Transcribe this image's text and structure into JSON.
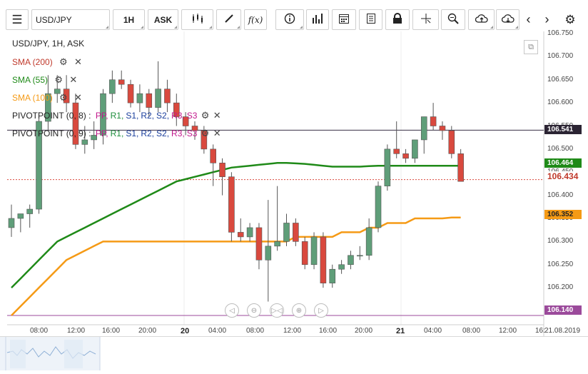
{
  "toolbar": {
    "symbol": "USD/JPY",
    "timeframe": "1H",
    "price_side": "ASK",
    "fx_label": "f(x)"
  },
  "legend": {
    "title": "USD/JPY, 1H, ASK",
    "sma200": "SMA (200)",
    "sma55": "SMA (55)",
    "sma100": "SMA (100)",
    "pivot1_label": "PIVOTPOINT (0, 8)",
    "pivot2_label": "PIVOTPOINT (0, 9)",
    "pivot_items": [
      "PP,",
      "R1,",
      "S1,",
      "R2,",
      "S2,",
      "R3,",
      "S3"
    ],
    "pivot_colors": [
      "#c2188c",
      "#1f8e3d",
      "#1a3e9c",
      "#1a3e9c",
      "#1a3e9c",
      "#c2188c",
      "#c2188c"
    ]
  },
  "colors": {
    "up": "#5f9e79",
    "down": "#d9493e",
    "sma55": "#1f8a18",
    "sma100": "#f59a15",
    "sma200": "#c0392b",
    "pivot_dark": "#3a2f45",
    "pivot_purple": "#9b4a9b"
  },
  "price_axis": {
    "ticks": [
      "106.750",
      "106.700",
      "106.650",
      "106.600",
      "106.550",
      "106.500",
      "106.450",
      "106.400",
      "106.350",
      "106.300",
      "106.250",
      "106.200",
      "106.150"
    ]
  },
  "price_tags": {
    "pivot_top": "106.541",
    "sma55": "106.464",
    "current": "106.434",
    "sma100": "106.352",
    "pivot_bottom": "106.140"
  },
  "time_axis": {
    "labels": [
      "08:00",
      "12:00",
      "16:00",
      "20:00",
      "20",
      "04:00",
      "08:00",
      "12:00",
      "16:00",
      "20:00",
      "21",
      "04:00",
      "08:00",
      "12:00",
      "16:"
    ],
    "date_label": "21.08.2019"
  },
  "chart_data": {
    "type": "candlestick",
    "title": "USD/JPY, 1H, ASK",
    "ylim": [
      106.14,
      106.75
    ],
    "candles": [
      {
        "o": 106.33,
        "h": 106.38,
        "l": 106.31,
        "c": 106.35
      },
      {
        "o": 106.35,
        "h": 106.36,
        "l": 106.32,
        "c": 106.36
      },
      {
        "o": 106.36,
        "h": 106.38,
        "l": 106.33,
        "c": 106.37
      },
      {
        "o": 106.37,
        "h": 106.58,
        "l": 106.36,
        "c": 106.56
      },
      {
        "o": 106.56,
        "h": 106.66,
        "l": 106.54,
        "c": 106.62
      },
      {
        "o": 106.62,
        "h": 106.66,
        "l": 106.6,
        "c": 106.63
      },
      {
        "o": 106.63,
        "h": 106.66,
        "l": 106.58,
        "c": 106.6
      },
      {
        "o": 106.6,
        "h": 106.62,
        "l": 106.5,
        "c": 106.51
      },
      {
        "o": 106.51,
        "h": 106.55,
        "l": 106.49,
        "c": 106.52
      },
      {
        "o": 106.52,
        "h": 106.56,
        "l": 106.5,
        "c": 106.53
      },
      {
        "o": 106.53,
        "h": 106.63,
        "l": 106.51,
        "c": 106.62
      },
      {
        "o": 106.62,
        "h": 106.67,
        "l": 106.6,
        "c": 106.65
      },
      {
        "o": 106.65,
        "h": 106.67,
        "l": 106.63,
        "c": 106.64
      },
      {
        "o": 106.64,
        "h": 106.65,
        "l": 106.59,
        "c": 106.6
      },
      {
        "o": 106.6,
        "h": 106.64,
        "l": 106.58,
        "c": 106.62
      },
      {
        "o": 106.62,
        "h": 106.63,
        "l": 106.57,
        "c": 106.59
      },
      {
        "o": 106.59,
        "h": 106.69,
        "l": 106.58,
        "c": 106.63
      },
      {
        "o": 106.63,
        "h": 106.65,
        "l": 106.58,
        "c": 106.6
      },
      {
        "o": 106.6,
        "h": 106.62,
        "l": 106.55,
        "c": 106.57
      },
      {
        "o": 106.57,
        "h": 106.58,
        "l": 106.53,
        "c": 106.55
      },
      {
        "o": 106.55,
        "h": 106.56,
        "l": 106.52,
        "c": 106.54
      },
      {
        "o": 106.54,
        "h": 106.55,
        "l": 106.49,
        "c": 106.5
      },
      {
        "o": 106.5,
        "h": 106.51,
        "l": 106.42,
        "c": 106.47
      },
      {
        "o": 106.47,
        "h": 106.48,
        "l": 106.4,
        "c": 106.44
      },
      {
        "o": 106.44,
        "h": 106.45,
        "l": 106.3,
        "c": 106.32
      },
      {
        "o": 106.32,
        "h": 106.35,
        "l": 106.3,
        "c": 106.31
      },
      {
        "o": 106.31,
        "h": 106.34,
        "l": 106.3,
        "c": 106.33
      },
      {
        "o": 106.33,
        "h": 106.34,
        "l": 106.24,
        "c": 106.26
      },
      {
        "o": 106.26,
        "h": 106.39,
        "l": 106.17,
        "c": 106.29
      },
      {
        "o": 106.29,
        "h": 106.42,
        "l": 106.28,
        "c": 106.3
      },
      {
        "o": 106.3,
        "h": 106.36,
        "l": 106.29,
        "c": 106.34
      },
      {
        "o": 106.34,
        "h": 106.35,
        "l": 106.29,
        "c": 106.3
      },
      {
        "o": 106.3,
        "h": 106.31,
        "l": 106.24,
        "c": 106.25
      },
      {
        "o": 106.25,
        "h": 106.32,
        "l": 106.24,
        "c": 106.31
      },
      {
        "o": 106.31,
        "h": 106.32,
        "l": 106.2,
        "c": 106.21
      },
      {
        "o": 106.21,
        "h": 106.25,
        "l": 106.2,
        "c": 106.24
      },
      {
        "o": 106.24,
        "h": 106.26,
        "l": 106.23,
        "c": 106.25
      },
      {
        "o": 106.25,
        "h": 106.28,
        "l": 106.24,
        "c": 106.27
      },
      {
        "o": 106.27,
        "h": 106.29,
        "l": 106.26,
        "c": 106.27
      },
      {
        "o": 106.27,
        "h": 106.35,
        "l": 106.26,
        "c": 106.33
      },
      {
        "o": 106.33,
        "h": 106.43,
        "l": 106.32,
        "c": 106.42
      },
      {
        "o": 106.42,
        "h": 106.51,
        "l": 106.41,
        "c": 106.5
      },
      {
        "o": 106.5,
        "h": 106.56,
        "l": 106.48,
        "c": 106.49
      },
      {
        "o": 106.49,
        "h": 106.5,
        "l": 106.47,
        "c": 106.48
      },
      {
        "o": 106.48,
        "h": 106.52,
        "l": 106.47,
        "c": 106.52
      },
      {
        "o": 106.52,
        "h": 106.57,
        "l": 106.49,
        "c": 106.57
      },
      {
        "o": 106.57,
        "h": 106.6,
        "l": 106.54,
        "c": 106.55
      },
      {
        "o": 106.55,
        "h": 106.56,
        "l": 106.52,
        "c": 106.54
      },
      {
        "o": 106.54,
        "h": 106.55,
        "l": 106.48,
        "c": 106.49
      },
      {
        "o": 106.49,
        "h": 106.5,
        "l": 106.43,
        "c": 106.43
      }
    ],
    "sma55": [
      106.2,
      106.22,
      106.24,
      106.26,
      106.28,
      106.3,
      106.31,
      106.32,
      106.33,
      106.34,
      106.35,
      106.36,
      106.37,
      106.38,
      106.39,
      106.4,
      106.41,
      106.42,
      106.43,
      106.435,
      106.44,
      106.445,
      106.45,
      106.455,
      106.46,
      106.462,
      106.464,
      106.466,
      106.468,
      106.47,
      106.47,
      106.469,
      106.468,
      106.466,
      106.464,
      106.462,
      106.462,
      106.462,
      106.462,
      106.463,
      106.464,
      106.464,
      106.464,
      106.464,
      106.464,
      106.464,
      106.464,
      106.464,
      106.464,
      106.464
    ],
    "sma100": [
      106.14,
      106.16,
      106.18,
      106.2,
      106.22,
      106.24,
      106.26,
      106.27,
      106.28,
      106.29,
      106.3,
      106.3,
      106.3,
      106.3,
      106.3,
      106.3,
      106.3,
      106.3,
      106.3,
      106.3,
      106.3,
      106.3,
      106.3,
      106.3,
      106.3,
      106.3,
      106.3,
      106.3,
      106.3,
      106.3,
      106.3,
      106.31,
      106.31,
      106.31,
      106.31,
      106.31,
      106.32,
      106.32,
      106.32,
      106.33,
      106.33,
      106.34,
      106.34,
      106.34,
      106.35,
      106.35,
      106.35,
      106.35,
      106.352,
      106.352
    ],
    "pivot_lines": [
      106.541,
      106.14
    ],
    "current_price": 106.434
  }
}
